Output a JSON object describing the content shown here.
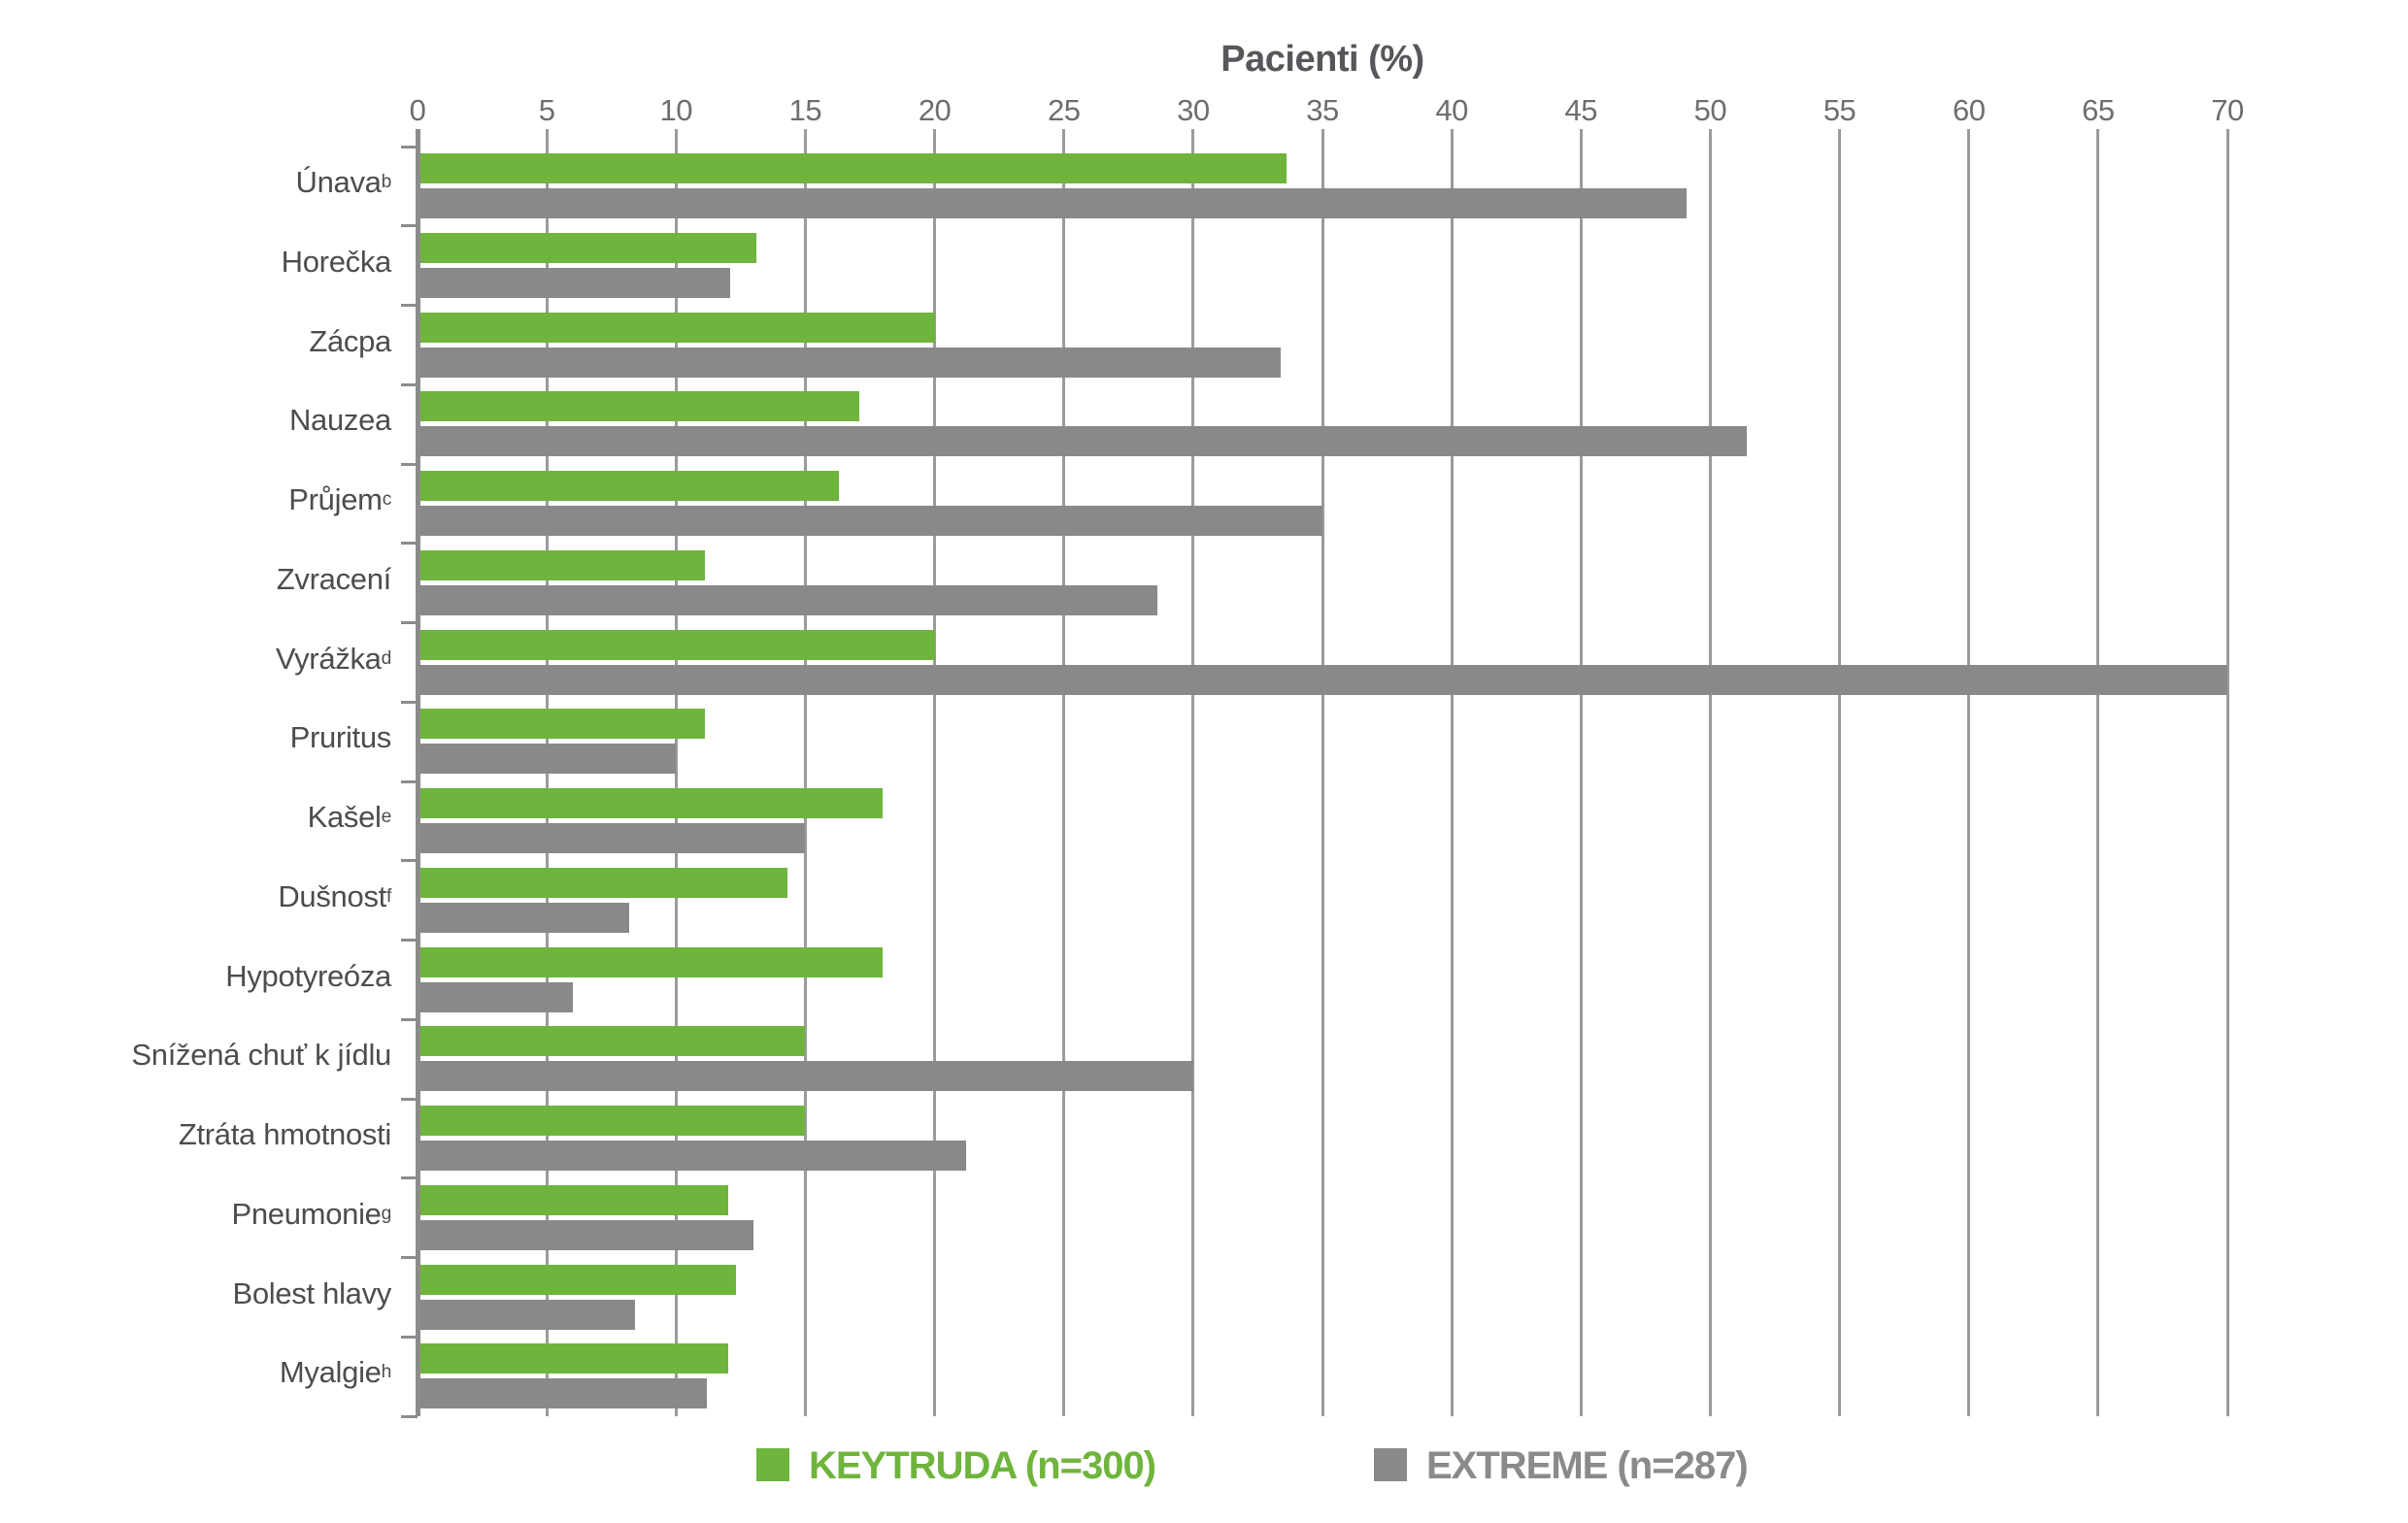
{
  "title": "Pacienti (%)",
  "legend": [
    {
      "label": "KEYTRUDA (n=300)",
      "color": "#6fb43c"
    },
    {
      "label": "EXTREME (n=287)",
      "color": "#898989"
    }
  ],
  "colors": {
    "keytruda_green": "#6fb43c",
    "extreme_grey": "#898989",
    "gridline": "#9b9b9b",
    "axis": "#8c8c8c",
    "tick_label": "#6d6e70",
    "category_label": "#4d4d4f",
    "title": "#56575b"
  },
  "chart_data": {
    "type": "bar",
    "orientation": "horizontal",
    "title": "Pacienti (%)",
    "xlabel": "Pacienti (%)",
    "ylabel": "",
    "xlim": [
      0,
      70
    ],
    "xticks": [
      0,
      5,
      10,
      15,
      20,
      25,
      30,
      35,
      40,
      45,
      50,
      55,
      60,
      65,
      70
    ],
    "grid": true,
    "legend_position": "bottom",
    "categories": [
      {
        "label": "Únava",
        "sup": "b"
      },
      {
        "label": "Horečka",
        "sup": ""
      },
      {
        "label": "Zácpa",
        "sup": ""
      },
      {
        "label": "Nauzea",
        "sup": ""
      },
      {
        "label": "Průjem",
        "sup": "c"
      },
      {
        "label": "Zvracení",
        "sup": ""
      },
      {
        "label": "Vyrážka",
        "sup": "d"
      },
      {
        "label": "Pruritus",
        "sup": ""
      },
      {
        "label": "Kašel",
        "sup": "e"
      },
      {
        "label": "Dušnost",
        "sup": "f"
      },
      {
        "label": "Hypotyreóza",
        "sup": ""
      },
      {
        "label": "Snížená chuť k jídlu",
        "sup": ""
      },
      {
        "label": "Ztráta hmotnosti",
        "sup": ""
      },
      {
        "label": "Pneumonie",
        "sup": "g"
      },
      {
        "label": "Bolest hlavy",
        "sup": ""
      },
      {
        "label": "Myalgie",
        "sup": "h"
      }
    ],
    "series": [
      {
        "name": "KEYTRUDA (n=300)",
        "color": "#6fb43c",
        "values": [
          33.6,
          13.1,
          20.0,
          17.1,
          16.3,
          11.1,
          20.0,
          11.1,
          18.0,
          14.3,
          18.0,
          15.0,
          15.0,
          12.0,
          12.3,
          12.0
        ]
      },
      {
        "name": "EXTREME (n=287)",
        "color": "#898989",
        "values": [
          49.1,
          12.1,
          33.4,
          51.4,
          35.0,
          28.6,
          70.0,
          10.0,
          15.0,
          8.2,
          6.0,
          30.0,
          21.2,
          13.0,
          8.4,
          11.2
        ]
      }
    ]
  }
}
